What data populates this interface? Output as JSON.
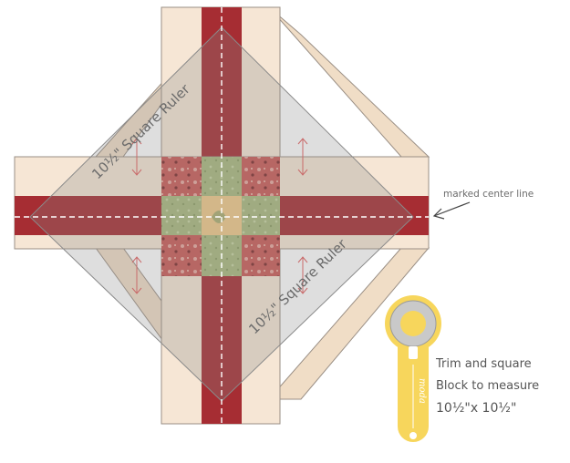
{
  "labels": {
    "ruler_top": "10½\" Square Ruler",
    "ruler_bottom": "10½\" Square Ruler",
    "center_line": "marked center line",
    "instruction_line1": "Trim and square",
    "instruction_line2": "Block to measure",
    "instruction_line3": "10½\"x 10½\"",
    "cutter_brand": "moda"
  },
  "colors": {
    "background_fabric": "#f6e6d5",
    "strip_fabric": "#a62d33",
    "outer_border": "#f0ddc6",
    "print_fabric": "#c95a56",
    "green_fabric": "#a9b97f",
    "center_fabric": "#f0c98a",
    "ruler_overlay": "#8a8a8a",
    "cutter_handle": "#f7d65c",
    "arrow": "#c96a6a"
  },
  "icons": {
    "cutter": "rotary-cutter-icon",
    "double_arrow": "double-arrow-icon",
    "pointer": "arrow-pointer-icon"
  }
}
